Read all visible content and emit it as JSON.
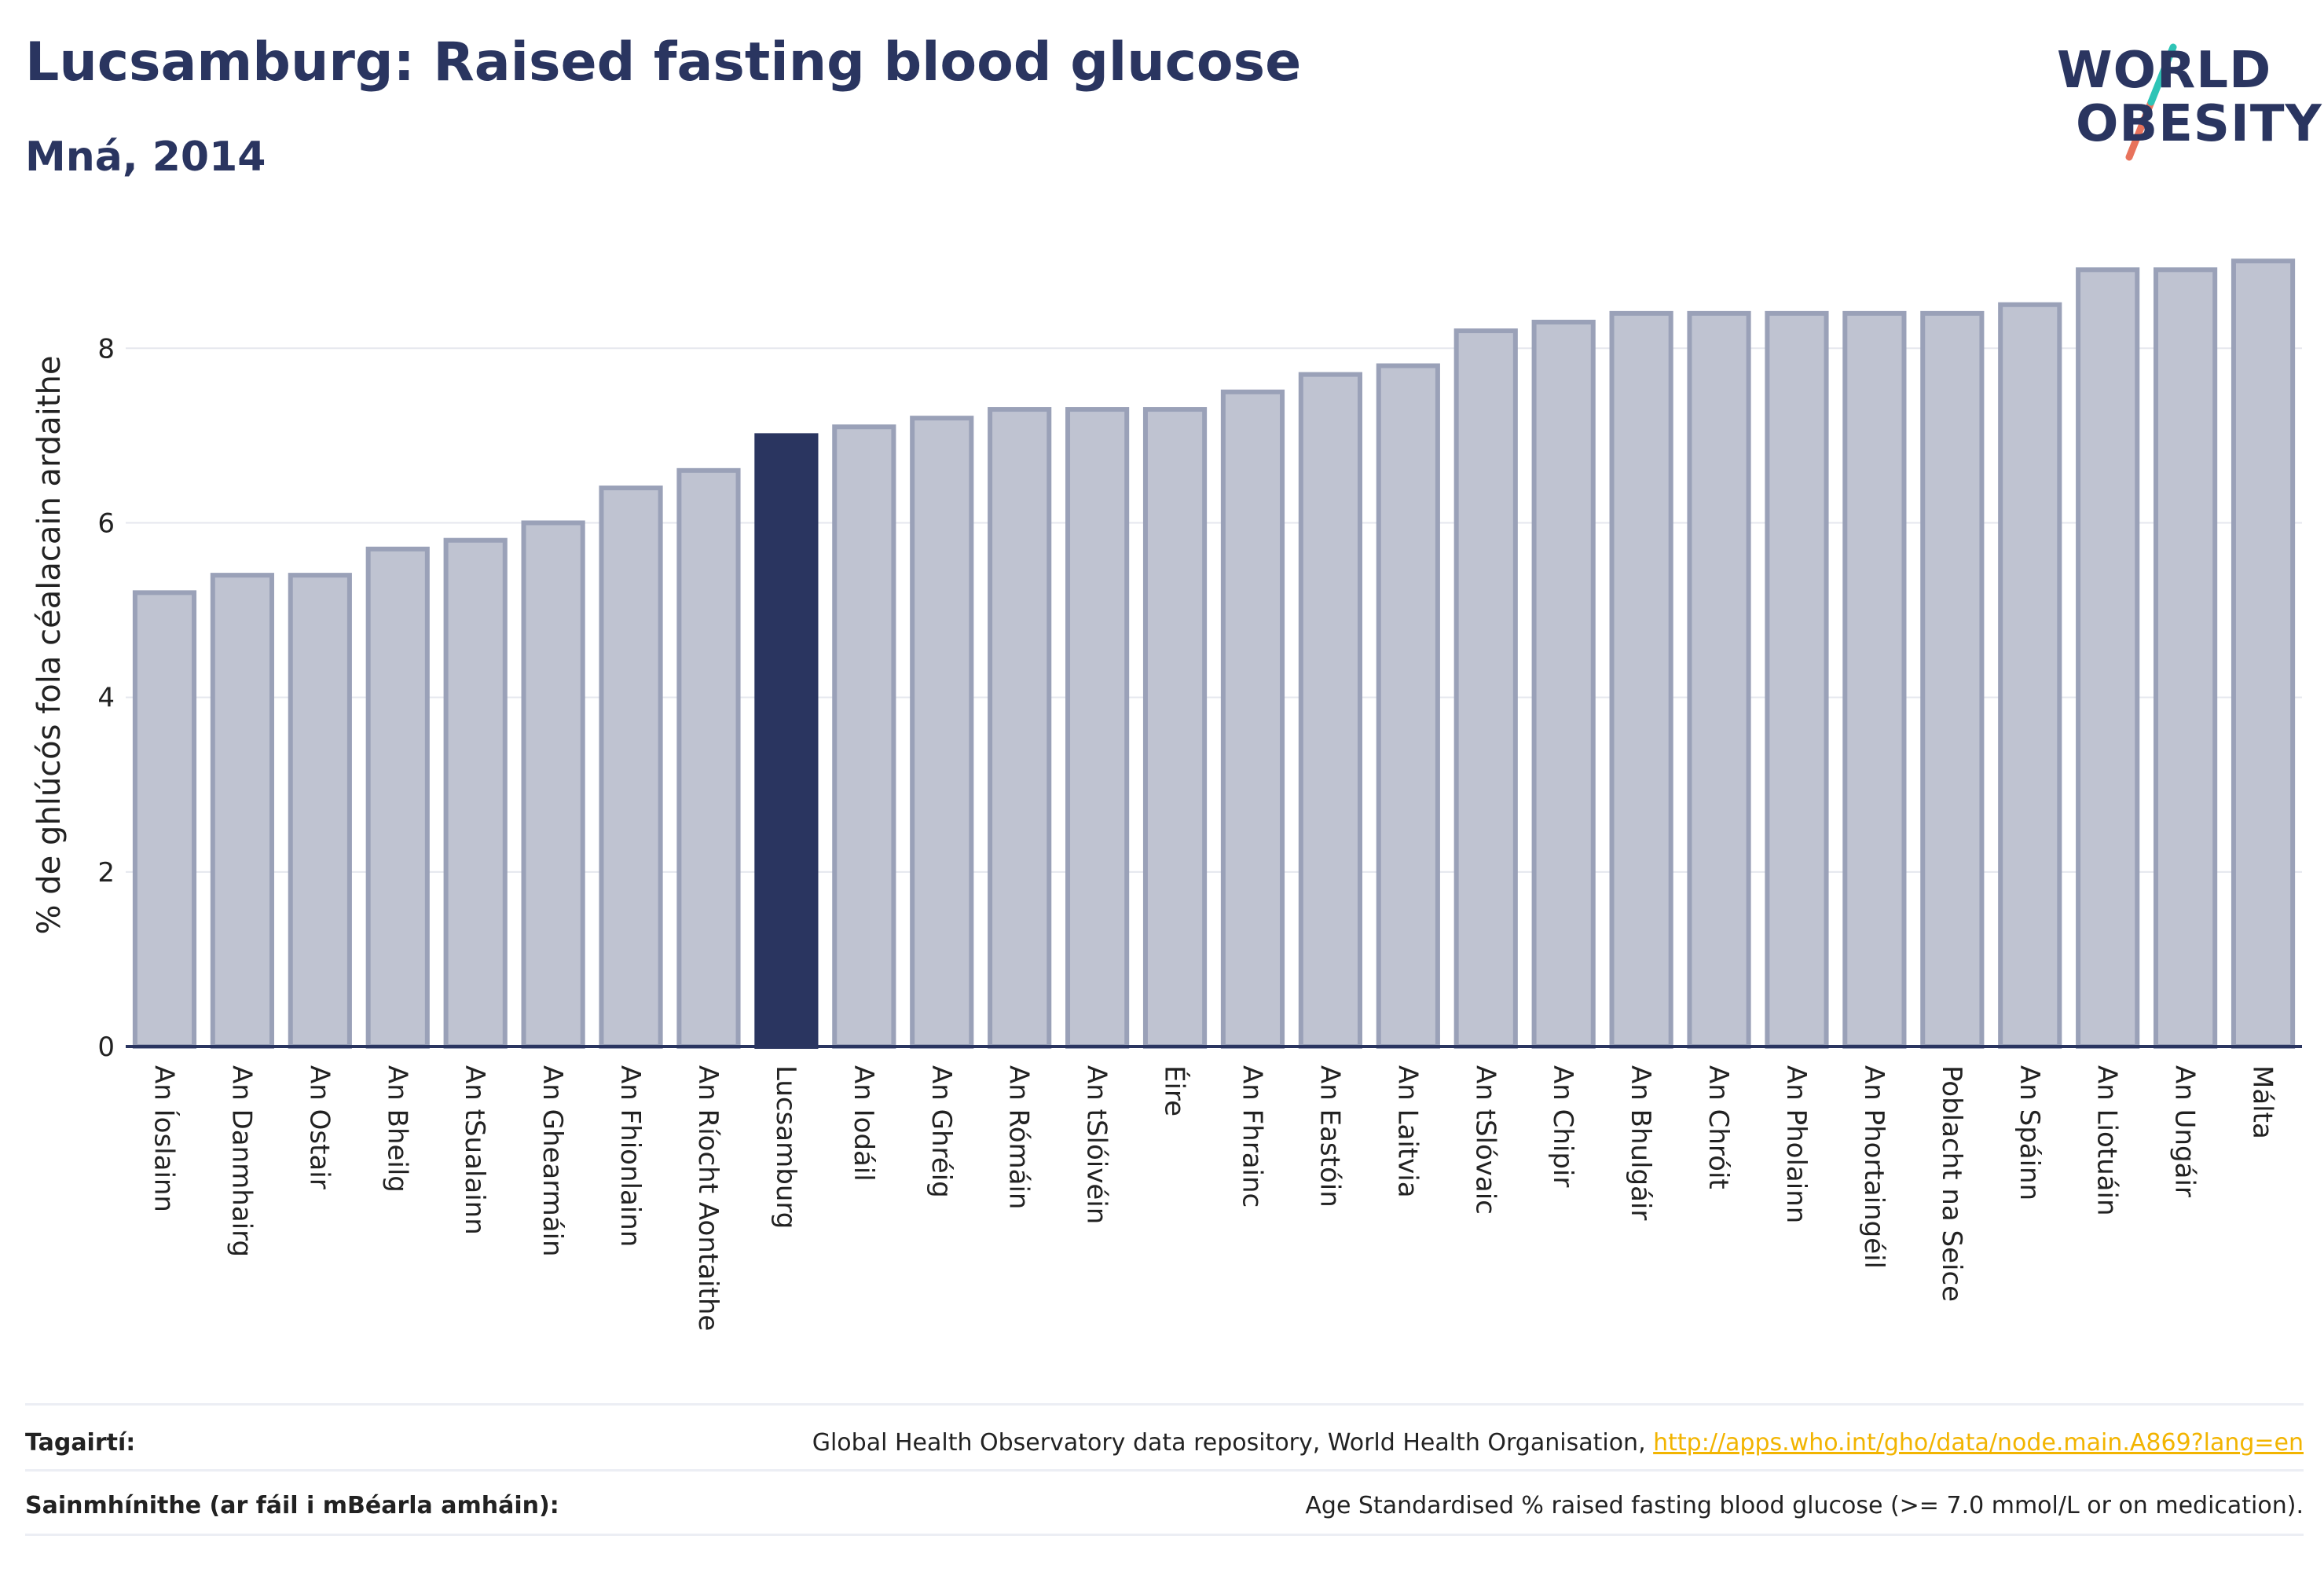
{
  "header": {
    "title": "Lucsamburg: Raised fasting blood glucose",
    "subtitle": "Mná, 2014"
  },
  "logo": {
    "line1": "WORLD",
    "line2": "OBESITY",
    "slash_colors": [
      "#2ec4b6",
      "#e8735c"
    ]
  },
  "colors": {
    "bar": "#bfc3d1",
    "bar_stroke": "#9aa1b8",
    "highlight": "#2a3560",
    "axis": "#2a3560",
    "grid": "#e5e7ee"
  },
  "chart_data": {
    "type": "bar",
    "ylabel": "% de ghlúcós fola céalacain ardaithe",
    "xlabel": "",
    "ylim": [
      0,
      9.2
    ],
    "yticks": [
      0,
      2,
      4,
      6,
      8
    ],
    "grid": true,
    "highlight": "Lucsamburg",
    "categories": [
      "An Íoslainn",
      "An Danmhairg",
      "An Ostair",
      "An Bheilg",
      "An tSualainn",
      "An Ghearmáin",
      "An Fhionlainn",
      "An Ríocht Aontaithe",
      "Lucsamburg",
      "An Iodáil",
      "An Ghréig",
      "An Rómáin",
      "An tSlóivéin",
      "Éire",
      "An Fhrainc",
      "An Eastóin",
      "An Laitvia",
      "An tSlóvaic",
      "An Chipir",
      "An Bhulgáir",
      "An Chróit",
      "An Pholainn",
      "An Phortaingéil",
      "Poblacht na Seice",
      "An Spáinn",
      "An Liotuáin",
      "An Ungáir",
      "Málta"
    ],
    "values": [
      5.2,
      5.4,
      5.4,
      5.7,
      5.8,
      6.0,
      6.4,
      6.6,
      7.0,
      7.1,
      7.2,
      7.3,
      7.3,
      7.3,
      7.5,
      7.7,
      7.8,
      8.2,
      8.3,
      8.4,
      8.4,
      8.4,
      8.4,
      8.4,
      8.5,
      8.9,
      8.9,
      9.0
    ]
  },
  "footer": {
    "references_label": "Tagairtí:",
    "references_text": "Global Health Observatory data repository, World Health Organisation, ",
    "references_link": "http://apps.who.int/gho/data/node.main.A869?lang=en",
    "definitions_label": "Sainmhínithe (ar fáil i mBéarla amháin):",
    "definitions_text": "Age Standardised % raised fasting blood glucose (>= 7.0 mmol/L or on medication)."
  }
}
